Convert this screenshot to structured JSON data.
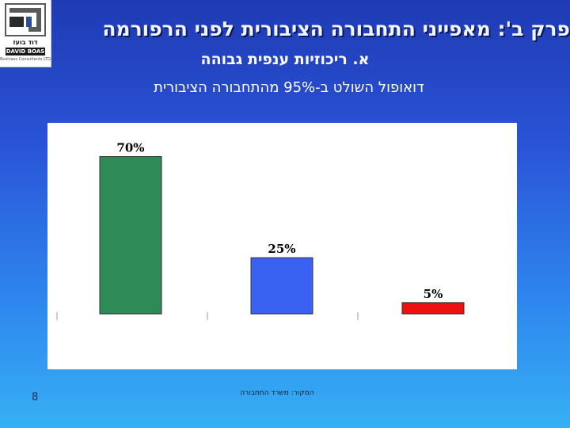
{
  "slide": {
    "title": "פרק ב': מאפייני התחבורה הציבורית לפני הרפורמה",
    "subtitle": "א. ריכוזיות ענפית גבוהה",
    "lead": "דואופול השולט ב-95% מהתחבורה הציבורית",
    "page_number": "8",
    "source": "המקור: משרד התחבורה"
  },
  "logo": {
    "hebrew_name": "דוד בועז",
    "english_name": "DAVID BOAS",
    "subtext": "Business Consultants LTD"
  },
  "colors": {
    "background_top": "#1f3ab4",
    "background_bottom": "#36b0f4",
    "bar_1": "#2e8b57",
    "bar_2": "#3a62f2",
    "bar_3": "#ee1111"
  },
  "chart_data": {
    "type": "bar",
    "title": "",
    "xlabel": "",
    "ylabel": "",
    "ylim": [
      0,
      85
    ],
    "grid": false,
    "legend": "none",
    "categories": [
      "",
      "",
      ""
    ],
    "values": [
      70,
      25,
      5
    ],
    "data_labels": [
      "70%",
      "25%",
      "5%"
    ]
  }
}
